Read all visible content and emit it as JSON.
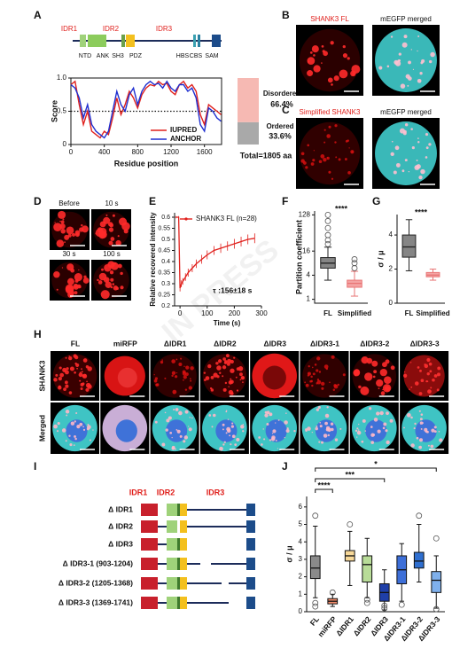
{
  "panel_labels": [
    "A",
    "B",
    "C",
    "D",
    "E",
    "F",
    "G",
    "H",
    "I",
    "J"
  ],
  "watermark": "IN PRESS",
  "a": {
    "idr_labels": [
      "IDR1",
      "IDR2",
      "IDR3"
    ],
    "domain_labels": [
      "NTD",
      "ANK",
      "SH3",
      "PDZ",
      "HBS",
      "CBS",
      "SAM"
    ],
    "chart": {
      "type": "line",
      "xlabel": "Residue position",
      "ylabel": "Score",
      "x": [
        0,
        50,
        100,
        150,
        200,
        250,
        300,
        350,
        400,
        450,
        500,
        550,
        600,
        650,
        700,
        750,
        800,
        850,
        900,
        950,
        1000,
        1050,
        1100,
        1150,
        1200,
        1250,
        1300,
        1350,
        1400,
        1450,
        1500,
        1550,
        1600,
        1650,
        1700,
        1750,
        1800
      ],
      "series": [
        {
          "name": "IUPRED",
          "color": "#e0201c",
          "values": [
            0.9,
            0.95,
            0.6,
            0.3,
            0.5,
            0.2,
            0.15,
            0.1,
            0.2,
            0.15,
            0.4,
            0.7,
            0.45,
            0.6,
            0.8,
            0.7,
            0.55,
            0.75,
            0.85,
            0.9,
            0.88,
            0.95,
            0.9,
            0.92,
            0.8,
            0.75,
            0.9,
            0.95,
            0.85,
            0.9,
            0.8,
            0.45,
            0.3,
            0.6,
            0.55,
            0.5,
            0.45
          ]
        },
        {
          "name": "ANCHOR",
          "color": "#1f2fd0",
          "values": [
            0.9,
            0.85,
            0.7,
            0.4,
            0.6,
            0.3,
            0.2,
            0.15,
            0.1,
            0.2,
            0.5,
            0.8,
            0.6,
            0.5,
            0.75,
            0.85,
            0.6,
            0.8,
            0.9,
            0.95,
            0.9,
            0.92,
            0.85,
            0.95,
            0.85,
            0.8,
            0.9,
            0.9,
            0.8,
            0.85,
            0.7,
            0.3,
            0.2,
            0.55,
            0.5,
            0.4,
            0.35
          ]
        }
      ],
      "xlim": [
        0,
        1805
      ],
      "ylim": [
        0,
        1
      ],
      "xticks": [
        0,
        400,
        800,
        1200,
        1600
      ],
      "yticks": [
        0,
        0.5,
        {
          "value": 1,
          "label": "1.0"
        }
      ],
      "threshold": 0.5
    },
    "fraction": {
      "type": "stacked-bar",
      "categories": [
        "Disordered",
        "Ordered"
      ],
      "values": [
        66.4,
        33.6
      ],
      "value_labels": [
        "66.4%",
        "33.6%"
      ],
      "colors": [
        "#f6b9b3",
        "#a9a9a9"
      ],
      "total_label": "Total=1805 aa"
    }
  },
  "b": {
    "headers": [
      "SHANK3 FL",
      "mEGFP merged"
    ]
  },
  "c": {
    "headers": [
      "Simplified SHANK3",
      "mEGFP merged"
    ]
  },
  "d": {
    "timepoints": [
      "Before",
      "10 s",
      "30 s",
      "100 s"
    ]
  },
  "e": {
    "type": "line",
    "xlabel": "Time (s)",
    "ylabel": "Relative recovered intensity",
    "annotation": "τ :156±18 s",
    "x": [
      -15,
      -5,
      0,
      5,
      10,
      20,
      30,
      45,
      60,
      80,
      100,
      125,
      150,
      175,
      200,
      225,
      250,
      275
    ],
    "series": [
      {
        "name": "SHANK3 FL (n=28)",
        "color": "#e0201c",
        "values": [
          0.6,
          0.6,
          0.28,
          0.3,
          0.31,
          0.33,
          0.35,
          0.37,
          0.39,
          0.41,
          0.43,
          0.45,
          0.46,
          0.47,
          0.48,
          0.49,
          0.5,
          0.505
        ],
        "errors": [
          0.005,
          0.005,
          0.015,
          0.015,
          0.015,
          0.017,
          0.018,
          0.018,
          0.019,
          0.02,
          0.02,
          0.02,
          0.021,
          0.021,
          0.022,
          0.022,
          0.022,
          0.022
        ]
      }
    ],
    "xlim": [
      -20,
      300
    ],
    "ylim": [
      0.2,
      0.62
    ],
    "xticks": [
      0,
      100,
      200,
      300
    ],
    "yticks": [
      0.2,
      0.25,
      0.3,
      0.35,
      0.4,
      0.45,
      0.5,
      0.55,
      0.6
    ]
  },
  "f": {
    "type": "box",
    "ylabel": "Partition coefficient",
    "log_scale": true,
    "significance": "****",
    "categories": [
      "FL",
      "Simplified"
    ],
    "boxes": [
      {
        "whislo": 3,
        "q1": 6,
        "med": 8,
        "q3": 11,
        "whishi": 20,
        "outliers": [
          24,
          30,
          40,
          60,
          90,
          128
        ]
      },
      {
        "whislo": 1.2,
        "q1": 2,
        "med": 2.5,
        "q3": 3,
        "whishi": 5,
        "outliers": [
          6,
          8,
          10
        ]
      }
    ],
    "colors": [
      "#858585",
      "#f4a3a3"
    ],
    "edge_colors": [
      "#222222",
      "#e87474"
    ],
    "ylim": [
      0.8,
      160
    ],
    "yticks": [
      1,
      4,
      16,
      128
    ]
  },
  "g": {
    "type": "box",
    "ylabel": "σ / μ",
    "significance": "****",
    "categories": [
      "FL",
      "Simplified"
    ],
    "boxes": [
      {
        "whislo": 1.9,
        "q1": 2.7,
        "med": 3.3,
        "q3": 4.0,
        "whishi": 4.9,
        "outliers": []
      },
      {
        "whislo": 1.35,
        "q1": 1.55,
        "med": 1.65,
        "q3": 1.8,
        "whishi": 2.0,
        "outliers": []
      }
    ],
    "colors": [
      "#858585",
      "#f4a3a3"
    ],
    "edge_colors": [
      "#222222",
      "#e87474"
    ],
    "ylim": [
      0,
      5.2
    ],
    "yticks": [
      0,
      2,
      4
    ]
  },
  "h": {
    "columns": [
      "FL",
      "miRFP",
      "ΔIDR1",
      "ΔIDR2",
      "ΔIDR3",
      "ΔIDR3-1",
      "ΔIDR3-2",
      "ΔIDR3-3"
    ],
    "rows": [
      "SHANK3",
      "Merged"
    ]
  },
  "i": {
    "headers": [
      "IDR1",
      "IDR2",
      "IDR3"
    ],
    "constructs": [
      "Δ IDR1",
      "Δ IDR2",
      "Δ IDR3",
      "Δ IDR3-1  (903-1204)",
      "Δ IDR3-2  (1205-1368)",
      "Δ IDR3-3  (1369-1741)"
    ]
  },
  "j": {
    "type": "box",
    "ylabel": "σ / μ",
    "categories": [
      "FL",
      "miRFP",
      "ΔIDR1",
      "ΔIDR2",
      "ΔIDR3",
      "ΔIDR3-1",
      "ΔIDR3-2",
      "ΔIDR3-3"
    ],
    "boxes": [
      {
        "whislo": 0.8,
        "q1": 1.9,
        "med": 2.5,
        "q3": 3.2,
        "whishi": 4.9,
        "outliers": [
          5.5,
          0.5,
          0.3
        ]
      },
      {
        "whislo": 0.3,
        "q1": 0.45,
        "med": 0.6,
        "q3": 0.75,
        "whishi": 1.0,
        "outliers": [
          1.1
        ]
      },
      {
        "whislo": 1.5,
        "q1": 2.9,
        "med": 3.2,
        "q3": 3.5,
        "whishi": 4.6,
        "outliers": [
          5.0
        ]
      },
      {
        "whislo": 0.8,
        "q1": 1.7,
        "med": 2.7,
        "q3": 3.2,
        "whishi": 4.2,
        "outliers": [
          0.7,
          0.5
        ]
      },
      {
        "whislo": 0.1,
        "q1": 0.6,
        "med": 1.1,
        "q3": 1.6,
        "whishi": 2.4,
        "outliers": [
          0.2,
          0.35
        ]
      },
      {
        "whislo": 0.6,
        "q1": 1.6,
        "med": 2.4,
        "q3": 3.2,
        "whishi": 3.9,
        "outliers": [
          0.4
        ]
      },
      {
        "whislo": 1.7,
        "q1": 2.5,
        "med": 2.9,
        "q3": 3.4,
        "whishi": 5.0,
        "outliers": [
          5.5
        ]
      },
      {
        "whislo": 0.2,
        "q1": 1.1,
        "med": 1.8,
        "q3": 2.3,
        "whishi": 3.2,
        "outliers": [
          4.2,
          0.15
        ]
      }
    ],
    "colors": [
      "#8a8a8a",
      "#f08a6a",
      "#f7d898",
      "#b8dc98",
      "#1f3fa8",
      "#3d6fd8",
      "#2f6fd0",
      "#7fb0ec"
    ],
    "comparisons": [
      {
        "from": "FL",
        "to": "miRFP",
        "label": "****"
      },
      {
        "from": "FL",
        "to": "ΔIDR3",
        "label": "***"
      },
      {
        "from": "FL",
        "to": "ΔIDR3-3",
        "label": "*"
      }
    ],
    "ylim": [
      0,
      6.6
    ],
    "yticks": [
      0,
      1,
      2,
      3,
      4,
      5,
      6
    ]
  }
}
